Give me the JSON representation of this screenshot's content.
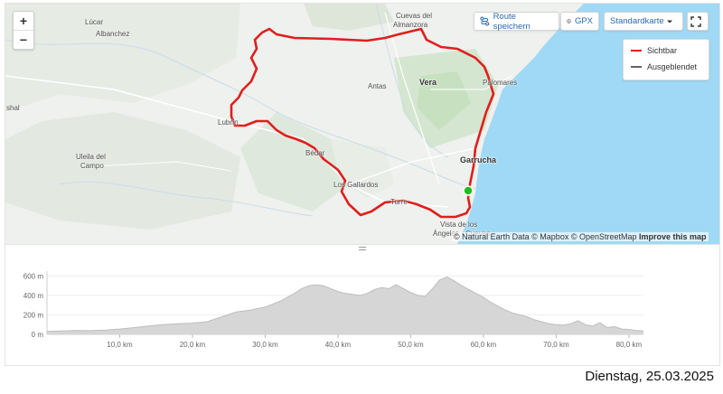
{
  "map": {
    "zoom_in_label": "+",
    "zoom_out_label": "−",
    "toolbar": {
      "save_route_label": "Route speichern",
      "gpx_label": "GPX",
      "map_style_label": "Standardkarte",
      "fullscreen_icon": "fullscreen-icon"
    },
    "legend": [
      {
        "label": "Sichtbar",
        "color": "#e02020"
      },
      {
        "label": "Ausgeblendet",
        "color": "#666666"
      }
    ],
    "attribution": {
      "text": "© Natural Earth Data © Mapbox © OpenStreetMap",
      "link": "Improve this map"
    },
    "places": [
      {
        "name": "Lúcar",
        "bold": false
      },
      {
        "name": "Albanchez",
        "bold": false
      },
      {
        "name": "Cuevas del",
        "bold": false
      },
      {
        "name": "Almanzora",
        "bold": false
      },
      {
        "name": "Antas",
        "bold": false
      },
      {
        "name": "Vera",
        "bold": true
      },
      {
        "name": "Palomares",
        "bold": false
      },
      {
        "name": "Lubrín",
        "bold": false
      },
      {
        "name": "Bédar",
        "bold": false
      },
      {
        "name": "Uleila del",
        "bold": false
      },
      {
        "name": "Campo",
        "bold": false
      },
      {
        "name": "Garrucha",
        "bold": true
      },
      {
        "name": "Los Gallardos",
        "bold": false
      },
      {
        "name": "Turre",
        "bold": false
      },
      {
        "name": "Vista de los",
        "bold": false
      },
      {
        "name": "Ángeles - Cuevas",
        "bold": false
      },
      {
        "name": "shal",
        "bold": false
      }
    ],
    "route_color": "#e01e1e",
    "start_marker_color": "#1fbf1f",
    "sea_color": "#9fd9f5"
  },
  "chart_data": {
    "type": "area",
    "xlabel": "",
    "ylabel": "",
    "x_unit": "km",
    "y_unit": "m",
    "xlim": [
      0,
      82
    ],
    "ylim": [
      0,
      650
    ],
    "x_ticks": [
      "10,0 km",
      "20,0 km",
      "30,0 km",
      "40,0 km",
      "50,0 km",
      "60,0 km",
      "70,0 km",
      "80,0 km"
    ],
    "x_tick_values": [
      10,
      20,
      30,
      40,
      50,
      60,
      70,
      80
    ],
    "y_ticks": [
      "0 m",
      "200 m",
      "400 m",
      "600 m"
    ],
    "y_tick_values": [
      0,
      200,
      400,
      600
    ],
    "x": [
      0,
      2,
      4,
      6,
      8,
      10,
      12,
      14,
      16,
      18,
      20,
      22,
      24,
      26,
      28,
      30,
      32,
      34,
      35,
      36,
      37,
      38,
      39,
      40,
      41,
      42,
      43,
      44,
      45,
      46,
      47,
      48,
      49,
      50,
      51,
      52,
      53,
      54,
      55,
      56,
      57,
      58,
      59,
      60,
      61,
      62,
      63,
      64,
      65,
      66,
      67,
      68,
      69,
      70,
      71,
      72,
      73,
      74,
      75,
      76,
      77,
      78,
      79,
      80,
      81,
      82
    ],
    "y": [
      30,
      35,
      40,
      38,
      45,
      55,
      70,
      85,
      100,
      110,
      115,
      130,
      180,
      230,
      250,
      280,
      340,
      420,
      470,
      500,
      510,
      500,
      470,
      440,
      420,
      410,
      400,
      420,
      460,
      480,
      470,
      510,
      470,
      430,
      400,
      390,
      470,
      560,
      590,
      550,
      500,
      460,
      420,
      380,
      330,
      290,
      250,
      220,
      200,
      180,
      150,
      130,
      110,
      100,
      95,
      110,
      140,
      100,
      85,
      120,
      70,
      80,
      55,
      50,
      40,
      35
    ],
    "fill_color": "#d6d6d6",
    "stroke_color": "#bdbdbd"
  },
  "date_text": "Dienstag, 25.03.2025"
}
